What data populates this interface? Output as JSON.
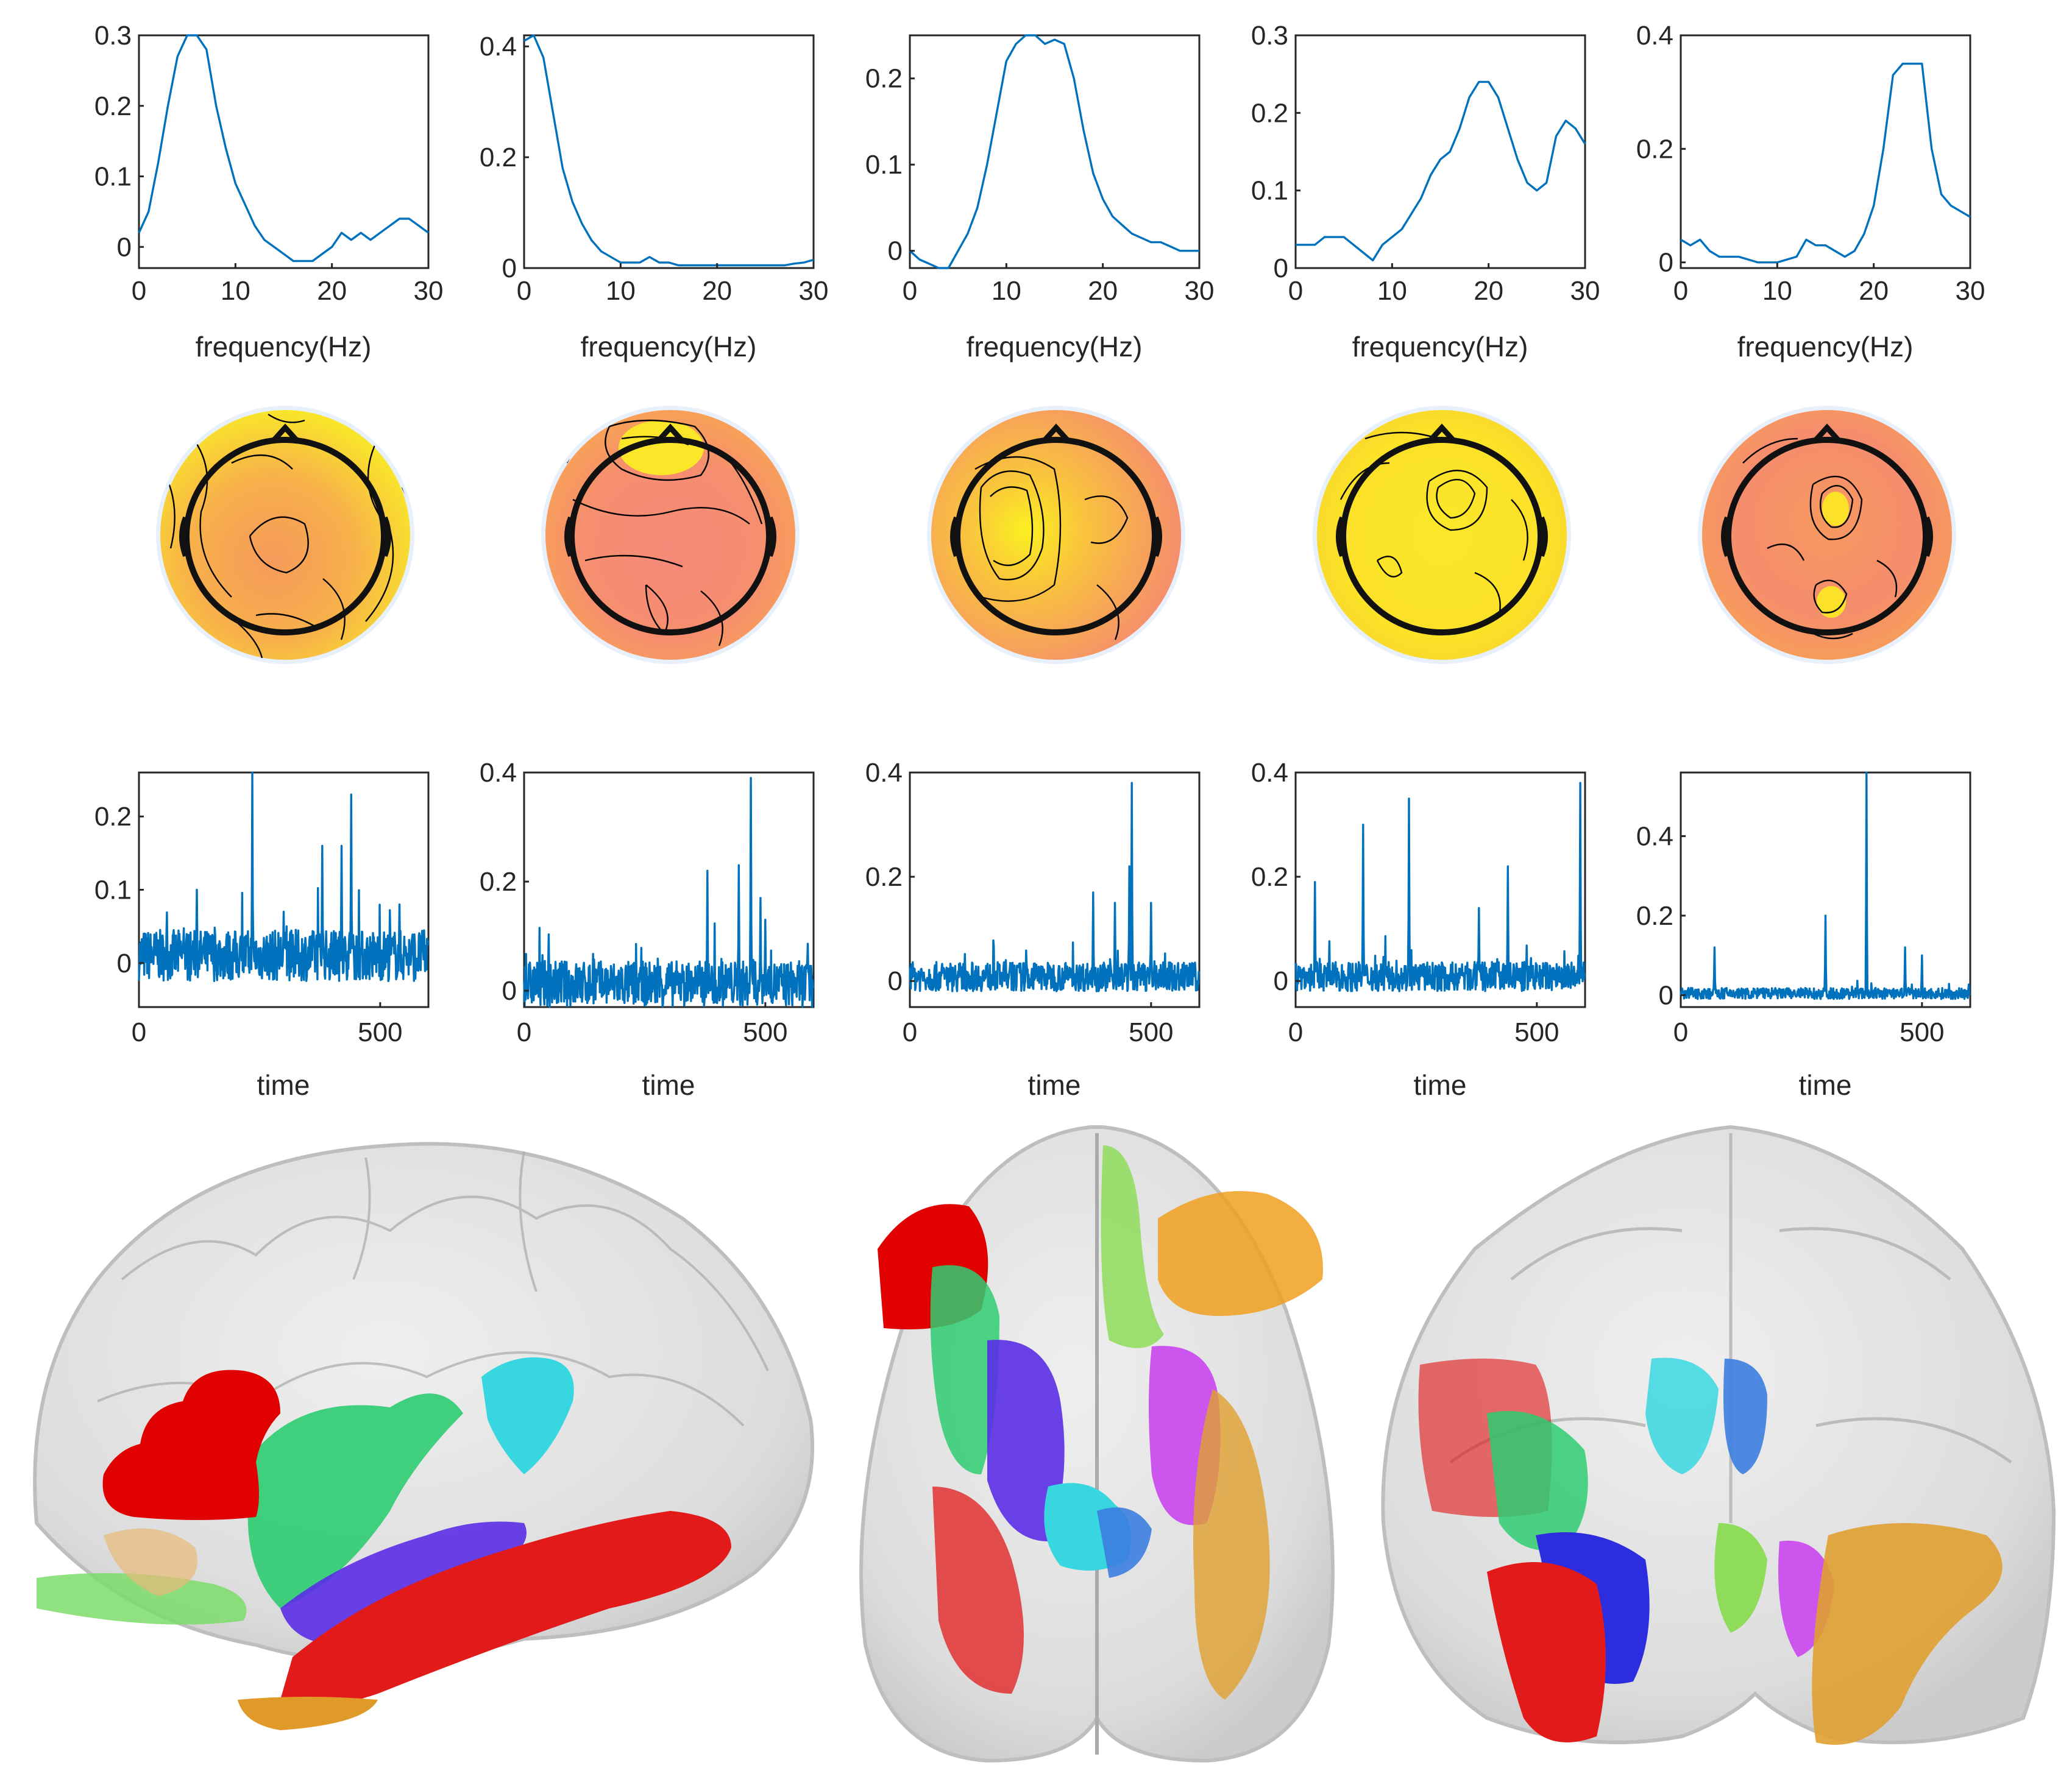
{
  "chart_data": {
    "type": "line",
    "components": [
      {
        "spectrum": {
          "xlabel": "frequency(Hz)",
          "xlim": [
            0,
            30
          ],
          "ylim": [
            -0.03,
            0.3
          ],
          "xticks": [
            "0",
            "10",
            "20",
            "30"
          ],
          "yticks": [
            "0",
            "0.1",
            "0.2",
            "0.3"
          ],
          "x": [
            0,
            1,
            2,
            3,
            4,
            5,
            6,
            7,
            8,
            9,
            10,
            11,
            12,
            13,
            14,
            15,
            16,
            17,
            18,
            19,
            20,
            21,
            22,
            23,
            24,
            25,
            26,
            27,
            28,
            29,
            30
          ],
          "y": [
            0.02,
            0.05,
            0.12,
            0.2,
            0.27,
            0.3,
            0.3,
            0.28,
            0.2,
            0.14,
            0.09,
            0.06,
            0.03,
            0.01,
            0.0,
            -0.01,
            -0.02,
            -0.02,
            -0.02,
            -0.01,
            0.0,
            0.02,
            0.01,
            0.02,
            0.01,
            0.02,
            0.03,
            0.04,
            0.04,
            0.03,
            0.02
          ]
        },
        "timecourse": {
          "xlabel": "time",
          "xlim": [
            0,
            600
          ],
          "ylim": [
            -0.06,
            0.26
          ],
          "xticks": [
            "0",
            "500"
          ],
          "yticks": [
            "0",
            "0.1",
            "0.2"
          ],
          "peaks": [
            [
              235,
              0.26
            ],
            [
              440,
              0.23
            ],
            [
              420,
              0.16
            ],
            [
              380,
              0.16
            ],
            [
              120,
              0.1
            ],
            [
              300,
              0.07
            ],
            [
              540,
              0.08
            ]
          ],
          "baseline": 0.0,
          "noise": 0.05
        }
      },
      {
        "spectrum": {
          "xlabel": "frequency(Hz)",
          "xlim": [
            0,
            30
          ],
          "ylim": [
            0,
            0.42
          ],
          "xticks": [
            "0",
            "10",
            "20",
            "30"
          ],
          "yticks": [
            "0",
            "0.2",
            "0.4"
          ],
          "x": [
            0,
            1,
            2,
            3,
            4,
            5,
            6,
            7,
            8,
            9,
            10,
            11,
            12,
            13,
            14,
            15,
            16,
            17,
            18,
            19,
            20,
            21,
            22,
            23,
            24,
            25,
            26,
            27,
            28,
            29,
            30
          ],
          "y": [
            0.41,
            0.42,
            0.38,
            0.28,
            0.18,
            0.12,
            0.08,
            0.05,
            0.03,
            0.02,
            0.01,
            0.01,
            0.01,
            0.02,
            0.01,
            0.01,
            0.005,
            0.005,
            0.005,
            0.005,
            0.005,
            0.005,
            0.005,
            0.005,
            0.005,
            0.005,
            0.005,
            0.005,
            0.008,
            0.01,
            0.015
          ]
        },
        "timecourse": {
          "xlabel": "time",
          "xlim": [
            0,
            600
          ],
          "ylim": [
            -0.03,
            0.4
          ],
          "xticks": [
            "0",
            "500"
          ],
          "yticks": [
            "0",
            "0.2",
            "0.4"
          ],
          "peaks": [
            [
              470,
              0.39
            ],
            [
              445,
              0.23
            ],
            [
              380,
              0.22
            ],
            [
              490,
              0.17
            ],
            [
              500,
              0.13
            ]
          ],
          "baseline": 0.0,
          "noise": 0.06
        }
      },
      {
        "spectrum": {
          "xlabel": "frequency(Hz)",
          "xlim": [
            0,
            30
          ],
          "ylim": [
            -0.02,
            0.25
          ],
          "xticks": [
            "0",
            "10",
            "20",
            "30"
          ],
          "yticks": [
            "0",
            "0.1",
            "0.2"
          ],
          "x": [
            0,
            1,
            2,
            3,
            4,
            5,
            6,
            7,
            8,
            9,
            10,
            11,
            12,
            13,
            14,
            15,
            16,
            17,
            18,
            19,
            20,
            21,
            22,
            23,
            24,
            25,
            26,
            27,
            28,
            29,
            30
          ],
          "y": [
            0.0,
            -0.01,
            -0.015,
            -0.02,
            -0.02,
            0.0,
            0.02,
            0.05,
            0.1,
            0.16,
            0.22,
            0.24,
            0.25,
            0.25,
            0.24,
            0.245,
            0.24,
            0.2,
            0.14,
            0.09,
            0.06,
            0.04,
            0.03,
            0.02,
            0.015,
            0.01,
            0.01,
            0.005,
            0.0,
            0.0,
            0.0
          ]
        },
        "timecourse": {
          "xlabel": "time",
          "xlim": [
            0,
            600
          ],
          "ylim": [
            -0.05,
            0.4
          ],
          "xticks": [
            "0",
            "500"
          ],
          "yticks": [
            "0",
            "0.2",
            "0.4"
          ],
          "peaks": [
            [
              460,
              0.38
            ],
            [
              455,
              0.22
            ],
            [
              380,
              0.17
            ],
            [
              425,
              0.15
            ],
            [
              500,
              0.15
            ]
          ],
          "baseline": 0.0,
          "noise": 0.04
        }
      },
      {
        "spectrum": {
          "xlabel": "frequency(Hz)",
          "xlim": [
            0,
            30
          ],
          "ylim": [
            0,
            0.3
          ],
          "xticks": [
            "0",
            "10",
            "20",
            "30"
          ],
          "yticks": [
            "0",
            "0.1",
            "0.2",
            "0.3"
          ],
          "x": [
            0,
            1,
            2,
            3,
            4,
            5,
            6,
            7,
            8,
            9,
            10,
            11,
            12,
            13,
            14,
            15,
            16,
            17,
            18,
            19,
            20,
            21,
            22,
            23,
            24,
            25,
            26,
            27,
            28,
            29,
            30
          ],
          "y": [
            0.03,
            0.03,
            0.03,
            0.04,
            0.04,
            0.04,
            0.03,
            0.02,
            0.01,
            0.03,
            0.04,
            0.05,
            0.07,
            0.09,
            0.12,
            0.14,
            0.15,
            0.18,
            0.22,
            0.24,
            0.24,
            0.22,
            0.18,
            0.14,
            0.11,
            0.1,
            0.11,
            0.17,
            0.19,
            0.18,
            0.16
          ]
        },
        "timecourse": {
          "xlabel": "time",
          "xlim": [
            0,
            600
          ],
          "ylim": [
            -0.05,
            0.4
          ],
          "xticks": [
            "0",
            "500"
          ],
          "yticks": [
            "0",
            "0.2",
            "0.4"
          ],
          "peaks": [
            [
              590,
              0.38
            ],
            [
              235,
              0.35
            ],
            [
              140,
              0.3
            ],
            [
              440,
              0.22
            ],
            [
              40,
              0.19
            ],
            [
              380,
              0.14
            ]
          ],
          "baseline": 0.0,
          "noise": 0.04
        }
      },
      {
        "spectrum": {
          "xlabel": "frequency(Hz)",
          "xlim": [
            0,
            30
          ],
          "ylim": [
            -0.01,
            0.4
          ],
          "xticks": [
            "0",
            "10",
            "20",
            "30"
          ],
          "yticks": [
            "0",
            "0.2",
            "0.4"
          ],
          "x": [
            0,
            1,
            2,
            3,
            4,
            5,
            6,
            7,
            8,
            9,
            10,
            11,
            12,
            13,
            14,
            15,
            16,
            17,
            18,
            19,
            20,
            21,
            22,
            23,
            24,
            25,
            26,
            27,
            28,
            29,
            30
          ],
          "y": [
            0.04,
            0.03,
            0.04,
            0.02,
            0.01,
            0.01,
            0.01,
            0.005,
            0.0,
            0.0,
            0.0,
            0.005,
            0.01,
            0.04,
            0.03,
            0.03,
            0.02,
            0.01,
            0.02,
            0.05,
            0.1,
            0.2,
            0.33,
            0.35,
            0.35,
            0.35,
            0.2,
            0.12,
            0.1,
            0.09,
            0.08
          ]
        },
        "timecourse": {
          "xlabel": "time",
          "xlim": [
            0,
            600
          ],
          "ylim": [
            -0.03,
            0.56
          ],
          "xticks": [
            "0",
            "500"
          ],
          "yticks": [
            "0",
            "0.2",
            "0.4"
          ],
          "peaks": [
            [
              385,
              0.56
            ],
            [
              300,
              0.2
            ],
            [
              70,
              0.12
            ],
            [
              465,
              0.12
            ],
            [
              500,
              0.1
            ]
          ],
          "baseline": 0.0,
          "noise": 0.02
        }
      }
    ],
    "topomaps": [
      {
        "style": "yellow-orange"
      },
      {
        "style": "salmon"
      },
      {
        "style": "orange-yellow-center"
      },
      {
        "style": "yellow"
      },
      {
        "style": "salmon-orange"
      }
    ],
    "brain_views": [
      "sagittal",
      "axial",
      "coronal"
    ]
  }
}
